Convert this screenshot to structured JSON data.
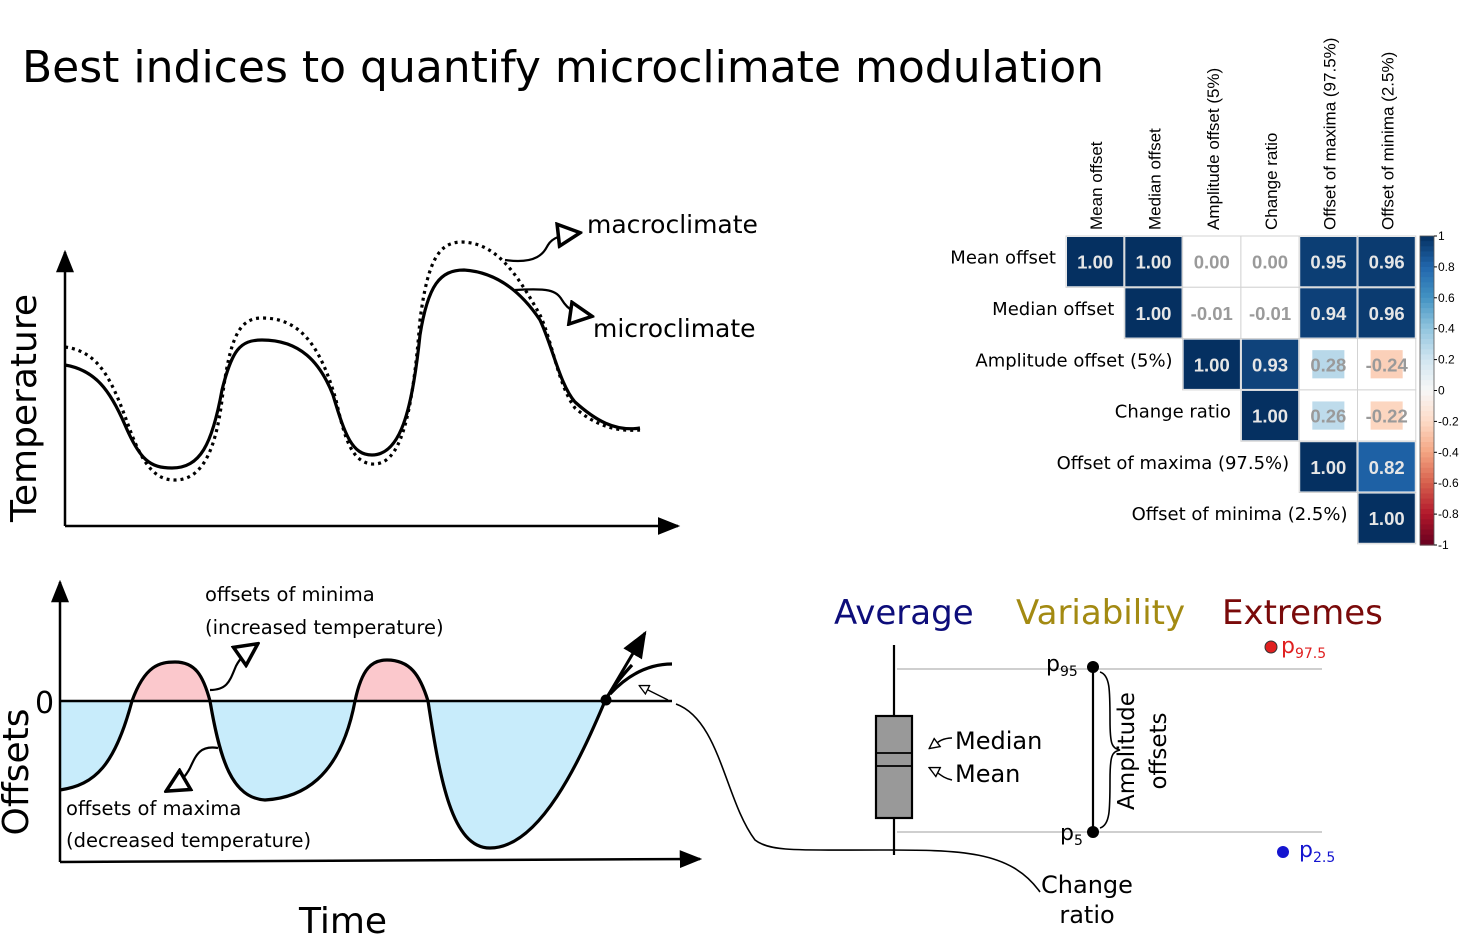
{
  "title": "Best indices to quantify microclimate modulation",
  "top_panel": {
    "ylabel": "Temperature",
    "macro_label": "macroclimate",
    "micro_label": "microclimate"
  },
  "bottom_panel": {
    "ylabel": "Offsets",
    "xlabel": "Time",
    "zero_label": "0",
    "minima_label_1": "offsets of minima",
    "minima_label_2": "(increased temperature)",
    "maxima_label_1": "offsets of maxima",
    "maxima_label_2": "(decreased temperature)"
  },
  "indices": {
    "average": "Average",
    "variability": "Variability",
    "extremes": "Extremes",
    "median": "Median",
    "mean": "Mean",
    "amplitude_1": "Amplitude",
    "amplitude_2": "offsets",
    "change_1": "Change",
    "change_2": "ratio",
    "p95": {
      "base": "p",
      "sub": "95"
    },
    "p5": {
      "base": "p",
      "sub": "5"
    },
    "p975": {
      "base": "p",
      "sub": "97.5"
    },
    "p25": {
      "base": "p",
      "sub": "2.5"
    },
    "colors": {
      "average": "#0d0d7a",
      "variability": "#a38a12",
      "extremes": "#7a0a0a",
      "p975": "#e02020",
      "p25": "#1515d0"
    }
  },
  "chart_data": {
    "type": "heatmap",
    "labels": [
      "Mean offset",
      "Median offset",
      "Amplitude offset (5%)",
      "Change ratio",
      "Offset of maxima (97.5%)",
      "Offset of minima (2.5%)"
    ],
    "matrix": [
      [
        1.0,
        1.0,
        0.0,
        0.0,
        0.95,
        0.96
      ],
      [
        null,
        1.0,
        -0.01,
        -0.01,
        0.94,
        0.96
      ],
      [
        null,
        null,
        1.0,
        0.93,
        0.28,
        -0.24
      ],
      [
        null,
        null,
        null,
        1.0,
        0.26,
        -0.22
      ],
      [
        null,
        null,
        null,
        null,
        1.0,
        0.82
      ],
      [
        null,
        null,
        null,
        null,
        null,
        1.0
      ]
    ],
    "cell_text": [
      [
        "1.00",
        "1.00",
        "0.00",
        "0.00",
        "0.95",
        "0.96"
      ],
      [
        null,
        "1.00",
        "-0.01",
        "-0.01",
        "0.94",
        "0.96"
      ],
      [
        null,
        null,
        "1.00",
        "0.93",
        "0.28",
        "-0.24"
      ],
      [
        null,
        null,
        null,
        "1.00",
        "0.26",
        "-0.22"
      ],
      [
        null,
        null,
        null,
        null,
        "1.00",
        "0.82"
      ],
      [
        null,
        null,
        null,
        null,
        null,
        "1.00"
      ]
    ],
    "colorbar_ticks": [
      "1",
      "0.8",
      "0.6",
      "0.4",
      "0.2",
      "0",
      "-0.2",
      "-0.4",
      "-0.6",
      "-0.8",
      "-1"
    ],
    "range": [
      -1,
      1
    ]
  }
}
